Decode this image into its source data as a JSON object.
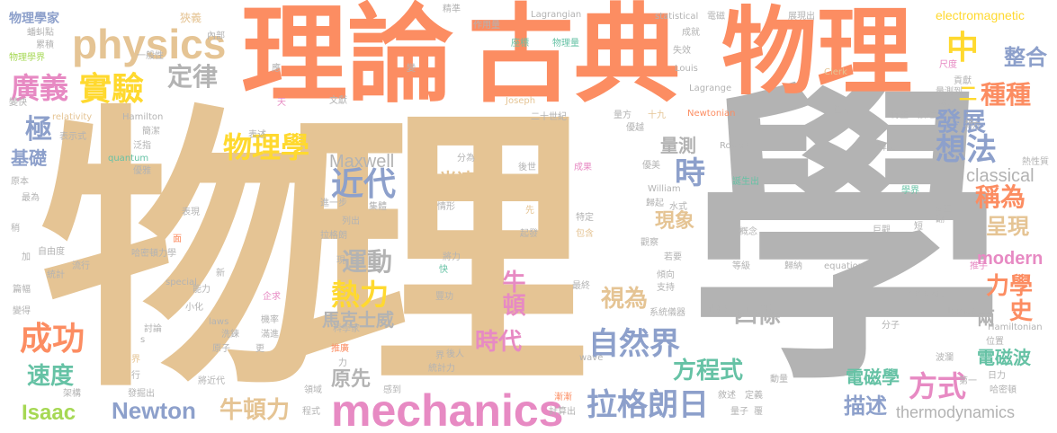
{
  "words": [
    {
      "text": "物理",
      "color": "#e5c494"
    },
    {
      "text": "學",
      "color": "#b3b3b3"
    },
    {
      "text": "理論",
      "color": "#fc8d62"
    },
    {
      "text": "古典",
      "color": "#fc8d62"
    },
    {
      "text": "物理",
      "color": "#fc8d62"
    },
    {
      "text": "physics",
      "color": "#e5c494"
    },
    {
      "text": "mechanics",
      "color": "#e78ac3"
    },
    {
      "text": "廣義",
      "color": "#e78ac3"
    },
    {
      "text": "實驗",
      "color": "#ffd92f"
    },
    {
      "text": "定律",
      "color": "#b3b3b3"
    },
    {
      "text": "物理學",
      "color": "#ffd92f"
    },
    {
      "text": "近代",
      "color": "#8da0cb"
    },
    {
      "text": "時",
      "color": "#8da0cb"
    },
    {
      "text": "中",
      "color": "#ffd92f"
    },
    {
      "text": "整合",
      "color": "#8da0cb"
    },
    {
      "text": "種種",
      "color": "#fc8d62"
    },
    {
      "text": "發展",
      "color": "#8da0cb"
    },
    {
      "text": "想法",
      "color": "#8da0cb"
    },
    {
      "text": "二",
      "color": "#ffd92f"
    },
    {
      "text": "極",
      "color": "#8da0cb"
    },
    {
      "text": "基礎",
      "color": "#8da0cb"
    },
    {
      "text": "Maxwell",
      "color": "#b3b3b3"
    },
    {
      "text": "量測",
      "color": "#b3b3b3"
    },
    {
      "text": "光速",
      "color": "#e5c494"
    },
    {
      "text": "classical",
      "color": "#b3b3b3"
    },
    {
      "text": "稱為",
      "color": "#fc8d62"
    },
    {
      "text": "呈現",
      "color": "#e5c494"
    },
    {
      "text": "現象",
      "color": "#e5c494"
    },
    {
      "text": "運動",
      "color": "#b3b3b3"
    },
    {
      "text": "熱力",
      "color": "#ffd92f"
    },
    {
      "text": "馬克士威",
      "color": "#b3b3b3"
    },
    {
      "text": "牛頓",
      "color": "#e78ac3"
    },
    {
      "text": "視為",
      "color": "#e5c494"
    },
    {
      "text": "四條",
      "color": "#b3b3b3"
    },
    {
      "text": "modern",
      "color": "#e78ac3"
    },
    {
      "text": "力學",
      "color": "#fc8d62"
    },
    {
      "text": "史",
      "color": "#fc8d62"
    },
    {
      "text": "成功",
      "color": "#fc8d62"
    },
    {
      "text": "時代",
      "color": "#e78ac3"
    },
    {
      "text": "自然界",
      "color": "#8da0cb"
    },
    {
      "text": "方程式",
      "color": "#66c2a5"
    },
    {
      "text": "兩",
      "color": "#b3b3b3"
    },
    {
      "text": "電磁波",
      "color": "#66c2a5"
    },
    {
      "text": "速度",
      "color": "#66c2a5"
    },
    {
      "text": "原先",
      "color": "#b3b3b3"
    },
    {
      "text": "電磁學",
      "color": "#66c2a5"
    },
    {
      "text": "方式",
      "color": "#e78ac3"
    },
    {
      "text": "Isaac",
      "color": "#a6d854"
    },
    {
      "text": "Newton",
      "color": "#8da0cb"
    },
    {
      "text": "牛頓力",
      "color": "#e5c494"
    },
    {
      "text": "拉格朗日",
      "color": "#8da0cb"
    },
    {
      "text": "描述",
      "color": "#8da0cb"
    },
    {
      "text": "thermodynamics",
      "color": "#b3b3b3"
    },
    {
      "text": "物理學家",
      "color": "#8da0cb"
    },
    {
      "text": "蟠虯點",
      "color": "#b3b3b3"
    },
    {
      "text": "累積",
      "color": "#b3b3b3"
    },
    {
      "text": "物理學界",
      "color": "#a6d854"
    },
    {
      "text": "狹義",
      "color": "#e5c494"
    },
    {
      "text": "一般性",
      "color": "#b3b3b3"
    },
    {
      "text": "內部",
      "color": "#b3b3b3"
    },
    {
      "text": "精準",
      "color": "#b3b3b3"
    },
    {
      "text": "作用量",
      "color": "#b3b3b3"
    },
    {
      "text": "Lagrangian",
      "color": "#b3b3b3"
    },
    {
      "text": "statistical",
      "color": "#b3b3b3"
    },
    {
      "text": "電磁",
      "color": "#b3b3b3"
    },
    {
      "text": "展現出",
      "color": "#b3b3b3"
    },
    {
      "text": "electromagnetic",
      "color": "#ffd92f"
    },
    {
      "text": "座標",
      "color": "#66c2a5"
    },
    {
      "text": "物理量",
      "color": "#66c2a5"
    },
    {
      "text": "成就",
      "color": "#b3b3b3"
    },
    {
      "text": "失效",
      "color": "#b3b3b3"
    },
    {
      "text": "Louis",
      "color": "#b3b3b3"
    },
    {
      "text": "Clerk",
      "color": "#e5c494"
    },
    {
      "text": "尺度",
      "color": "#e78ac3"
    },
    {
      "text": "貢獻",
      "color": "#b3b3b3"
    },
    {
      "text": "量測到",
      "color": "#b3b3b3"
    },
    {
      "text": "變快",
      "color": "#b3b3b3"
    },
    {
      "text": "天",
      "color": "#e78ac3"
    },
    {
      "text": "文獻",
      "color": "#b3b3b3"
    },
    {
      "text": "Joseph",
      "color": "#e5c494"
    },
    {
      "text": "Lagrange",
      "color": "#b3b3b3"
    },
    {
      "text": "參考",
      "color": "#b3b3b3"
    },
    {
      "text": "relativity",
      "color": "#e5c494"
    },
    {
      "text": "Hamilton",
      "color": "#b3b3b3"
    },
    {
      "text": "二十世紀",
      "color": "#b3b3b3"
    },
    {
      "text": "量方",
      "color": "#b3b3b3"
    },
    {
      "text": "十九",
      "color": "#e5c494"
    },
    {
      "text": "世界",
      "color": "#b3b3b3"
    },
    {
      "text": "Newtonian",
      "color": "#fc8d62"
    },
    {
      "text": "衍生",
      "color": "#b3b3b3"
    },
    {
      "text": "接近",
      "color": "#b3b3b3"
    },
    {
      "text": "思想",
      "color": "#b3b3b3"
    },
    {
      "text": "簡潔",
      "color": "#b3b3b3"
    },
    {
      "text": "泛指",
      "color": "#b3b3b3"
    },
    {
      "text": "表示式",
      "color": "#b3b3b3"
    },
    {
      "text": "表述",
      "color": "#b3b3b3"
    },
    {
      "text": "quantum",
      "color": "#66c2a5"
    },
    {
      "text": "優雅",
      "color": "#b3b3b3"
    },
    {
      "text": "優越",
      "color": "#b3b3b3"
    },
    {
      "text": "Rowan",
      "color": "#b3b3b3"
    },
    {
      "text": "算是",
      "color": "#b3b3b3"
    },
    {
      "text": "分為",
      "color": "#b3b3b3"
    },
    {
      "text": "後世",
      "color": "#b3b3b3"
    },
    {
      "text": "成果",
      "color": "#e78ac3"
    },
    {
      "text": "優美",
      "color": "#b3b3b3"
    },
    {
      "text": "誕生出",
      "color": "#66c2a5"
    },
    {
      "text": "William",
      "color": "#b3b3b3"
    },
    {
      "text": "學界",
      "color": "#66c2a5"
    },
    {
      "text": "原本",
      "color": "#b3b3b3"
    },
    {
      "text": "最為",
      "color": "#b3b3b3"
    },
    {
      "text": "表現",
      "color": "#b3b3b3"
    },
    {
      "text": "進一步",
      "color": "#b3b3b3"
    },
    {
      "text": "集體",
      "color": "#b3b3b3"
    },
    {
      "text": "情形",
      "color": "#b3b3b3"
    },
    {
      "text": "先",
      "color": "#e5c494"
    },
    {
      "text": "特定",
      "color": "#b3b3b3"
    },
    {
      "text": "歸起",
      "color": "#b3b3b3"
    },
    {
      "text": "水式",
      "color": "#b3b3b3"
    },
    {
      "text": "獨立",
      "color": "#b3b3b3"
    },
    {
      "text": "翻",
      "color": "#b3b3b3"
    },
    {
      "text": "列出",
      "color": "#b3b3b3"
    },
    {
      "text": "拉格朗",
      "color": "#b3b3b3"
    },
    {
      "text": "起發",
      "color": "#b3b3b3"
    },
    {
      "text": "包含",
      "color": "#e5c494"
    },
    {
      "text": "觀察",
      "color": "#b3b3b3"
    },
    {
      "text": "概念",
      "color": "#b3b3b3"
    },
    {
      "text": "巨觀",
      "color": "#b3b3b3"
    },
    {
      "text": "短",
      "color": "#b3b3b3"
    },
    {
      "text": "稍",
      "color": "#b3b3b3"
    },
    {
      "text": "面",
      "color": "#fc8d62"
    },
    {
      "text": "自由度",
      "color": "#b3b3b3"
    },
    {
      "text": "哈密頓力學",
      "color": "#b3b3b3"
    },
    {
      "text": "流行",
      "color": "#b3b3b3"
    },
    {
      "text": "統計",
      "color": "#b3b3b3"
    },
    {
      "text": "將力",
      "color": "#b3b3b3"
    },
    {
      "text": "若要",
      "color": "#b3b3b3"
    },
    {
      "text": "等級",
      "color": "#b3b3b3"
    },
    {
      "text": "歸納",
      "color": "#b3b3b3"
    },
    {
      "text": "equations",
      "color": "#b3b3b3"
    },
    {
      "text": "推手",
      "color": "#e78ac3"
    },
    {
      "text": "篇幅",
      "color": "#b3b3b3"
    },
    {
      "text": "special",
      "color": "#b3b3b3"
    },
    {
      "text": "能力",
      "color": "#b3b3b3"
    },
    {
      "text": "新",
      "color": "#b3b3b3"
    },
    {
      "text": "快",
      "color": "#66c2a5"
    },
    {
      "text": "最終",
      "color": "#b3b3b3"
    },
    {
      "text": "傾向",
      "color": "#b3b3b3"
    },
    {
      "text": "支持",
      "color": "#b3b3b3"
    },
    {
      "text": "變得",
      "color": "#b3b3b3"
    },
    {
      "text": "小化",
      "color": "#b3b3b3"
    },
    {
      "text": "企求",
      "color": "#e78ac3"
    },
    {
      "text": "豐功",
      "color": "#b3b3b3"
    },
    {
      "text": "系統儀器",
      "color": "#b3b3b3"
    },
    {
      "text": "傳播",
      "color": "#b3b3b3"
    },
    {
      "text": "津津樂道",
      "color": "#b3b3b3"
    },
    {
      "text": "James",
      "color": "#b3b3b3"
    },
    {
      "text": "討論",
      "color": "#b3b3b3"
    },
    {
      "text": "laws",
      "color": "#b3b3b3"
    },
    {
      "text": "機率",
      "color": "#b3b3b3"
    },
    {
      "text": "分子",
      "color": "#b3b3b3"
    },
    {
      "text": "Hamiltonian",
      "color": "#b3b3b3"
    },
    {
      "text": "洗鍊",
      "color": "#b3b3b3"
    },
    {
      "text": "滿進",
      "color": "#b3b3b3"
    },
    {
      "text": "科學家",
      "color": "#b3b3b3"
    },
    {
      "text": "位置",
      "color": "#b3b3b3"
    },
    {
      "text": "交界",
      "color": "#e5c494"
    },
    {
      "text": "原子",
      "color": "#b3b3b3"
    },
    {
      "text": "更",
      "color": "#b3b3b3"
    },
    {
      "text": "推廣",
      "color": "#fc8d62"
    },
    {
      "text": "後人",
      "color": "#b3b3b3"
    },
    {
      "text": "wave",
      "color": "#b3b3b3"
    },
    {
      "text": "波瀾",
      "color": "#b3b3b3"
    },
    {
      "text": "日力",
      "color": "#b3b3b3"
    },
    {
      "text": "行",
      "color": "#b3b3b3"
    },
    {
      "text": "將近代",
      "color": "#b3b3b3"
    },
    {
      "text": "統計力",
      "color": "#b3b3b3"
    },
    {
      "text": "界",
      "color": "#b3b3b3"
    },
    {
      "text": "動量",
      "color": "#b3b3b3"
    },
    {
      "text": "第一",
      "color": "#b3b3b3"
    },
    {
      "text": "架構",
      "color": "#b3b3b3"
    },
    {
      "text": "發掘出",
      "color": "#b3b3b3"
    },
    {
      "text": "領域",
      "color": "#b3b3b3"
    },
    {
      "text": "感到",
      "color": "#b3b3b3"
    },
    {
      "text": "漸漸",
      "color": "#fc8d62"
    },
    {
      "text": "敘述",
      "color": "#b3b3b3"
    },
    {
      "text": "定義",
      "color": "#b3b3b3"
    },
    {
      "text": "哈密頓",
      "color": "#b3b3b3"
    },
    {
      "text": "程式",
      "color": "#b3b3b3"
    },
    {
      "text": "計算出",
      "color": "#b3b3b3"
    },
    {
      "text": "量子",
      "color": "#b3b3b3"
    },
    {
      "text": "覆",
      "color": "#b3b3b3"
    },
    {
      "text": "熱性質",
      "color": "#b3b3b3"
    },
    {
      "text": "應",
      "color": "#b3b3b3"
    },
    {
      "text": "變",
      "color": "#b3b3b3"
    },
    {
      "text": "加",
      "color": "#b3b3b3"
    },
    {
      "text": "s",
      "color": "#b3b3b3"
    },
    {
      "text": "力",
      "color": "#b3b3b3"
    },
    {
      "text": "現",
      "color": "#b3b3b3"
    },
    {
      "text": "方",
      "color": "#b3b3b3"
    }
  ]
}
